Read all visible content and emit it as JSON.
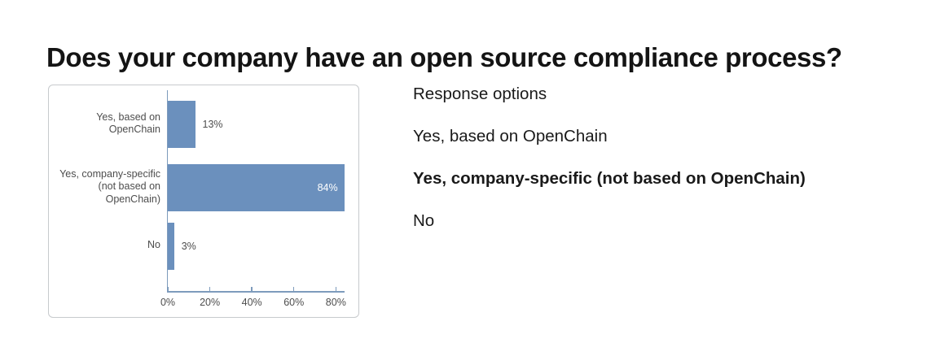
{
  "page": {
    "title": "Does your company have an open source compliance process?"
  },
  "chart_data": {
    "type": "bar",
    "orientation": "horizontal",
    "title": "Does your company have an open source compliance process?",
    "categories": [
      "Yes, based on OpenChain",
      "Yes, company-specific (not based on OpenChain)",
      "No"
    ],
    "values": [
      13,
      84,
      3
    ],
    "value_labels": [
      "13%",
      "84%",
      "3%"
    ],
    "category_label_lines": [
      [
        "Yes, based on",
        "OpenChain"
      ],
      [
        "Yes, company-specific",
        "(not based on",
        "OpenChain)"
      ],
      [
        "No"
      ]
    ],
    "x_ticks": [
      {
        "value": 0,
        "label": "0%"
      },
      {
        "value": 20,
        "label": "20%"
      },
      {
        "value": 40,
        "label": "40%"
      },
      {
        "value": 60,
        "label": "60%"
      },
      {
        "value": 80,
        "label": "80%"
      }
    ],
    "xlim": [
      0,
      84
    ],
    "xlabel": "",
    "ylabel": "",
    "legend": "none",
    "grid": false,
    "colors": {
      "bar": "#6b90bd",
      "axis": "#7d9bbc",
      "tick_label": "#4d4d4d",
      "category_label": "#4d4d4d",
      "value_label_outside": "#4d4d4d",
      "value_label_inside": "#ffffff"
    }
  },
  "response_options": {
    "header": "Response options",
    "items": [
      {
        "label": "Yes, based on OpenChain",
        "bold": false
      },
      {
        "label": "Yes, company-specific (not based on OpenChain)",
        "bold": true
      },
      {
        "label": "No",
        "bold": false
      }
    ]
  }
}
